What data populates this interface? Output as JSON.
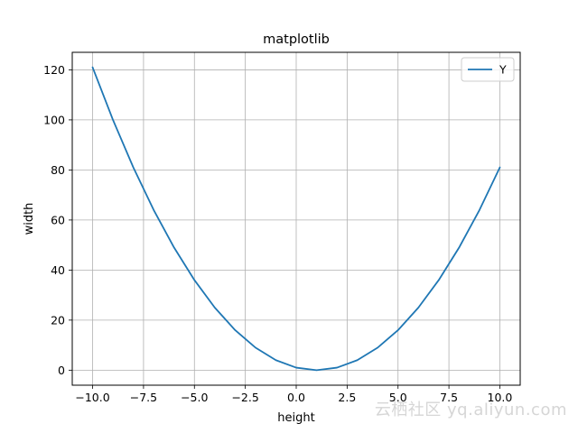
{
  "chart_data": {
    "type": "line",
    "title": "matplotlib",
    "xlabel": "height",
    "ylabel": "width",
    "xlim": [
      -11,
      11
    ],
    "ylim": [
      -6,
      127
    ],
    "xticks": [
      -10.0,
      -7.5,
      -5.0,
      -2.5,
      0.0,
      2.5,
      5.0,
      7.5,
      10.0
    ],
    "xtick_labels": [
      "−10.0",
      "−7.5",
      "−5.0",
      "−2.5",
      "0.0",
      "2.5",
      "5.0",
      "7.5",
      "10.0"
    ],
    "yticks": [
      0,
      20,
      40,
      60,
      80,
      100,
      120
    ],
    "ytick_labels": [
      "0",
      "20",
      "40",
      "60",
      "80",
      "100",
      "120"
    ],
    "grid": true,
    "legend_position": "top-right",
    "series": [
      {
        "name": "Y",
        "color": "#1f77b4",
        "x": [
          -10,
          -9,
          -8,
          -7,
          -6,
          -5,
          -4,
          -3,
          -2,
          -1,
          0,
          1,
          2,
          3,
          4,
          5,
          6,
          7,
          8,
          9,
          10
        ],
        "y": [
          121,
          100,
          81,
          64,
          49,
          36,
          25,
          16,
          9,
          4,
          1,
          0,
          1,
          4,
          9,
          16,
          25,
          36,
          49,
          64,
          81
        ]
      }
    ]
  },
  "watermark": "云栖社区 yq.aliyun.com"
}
